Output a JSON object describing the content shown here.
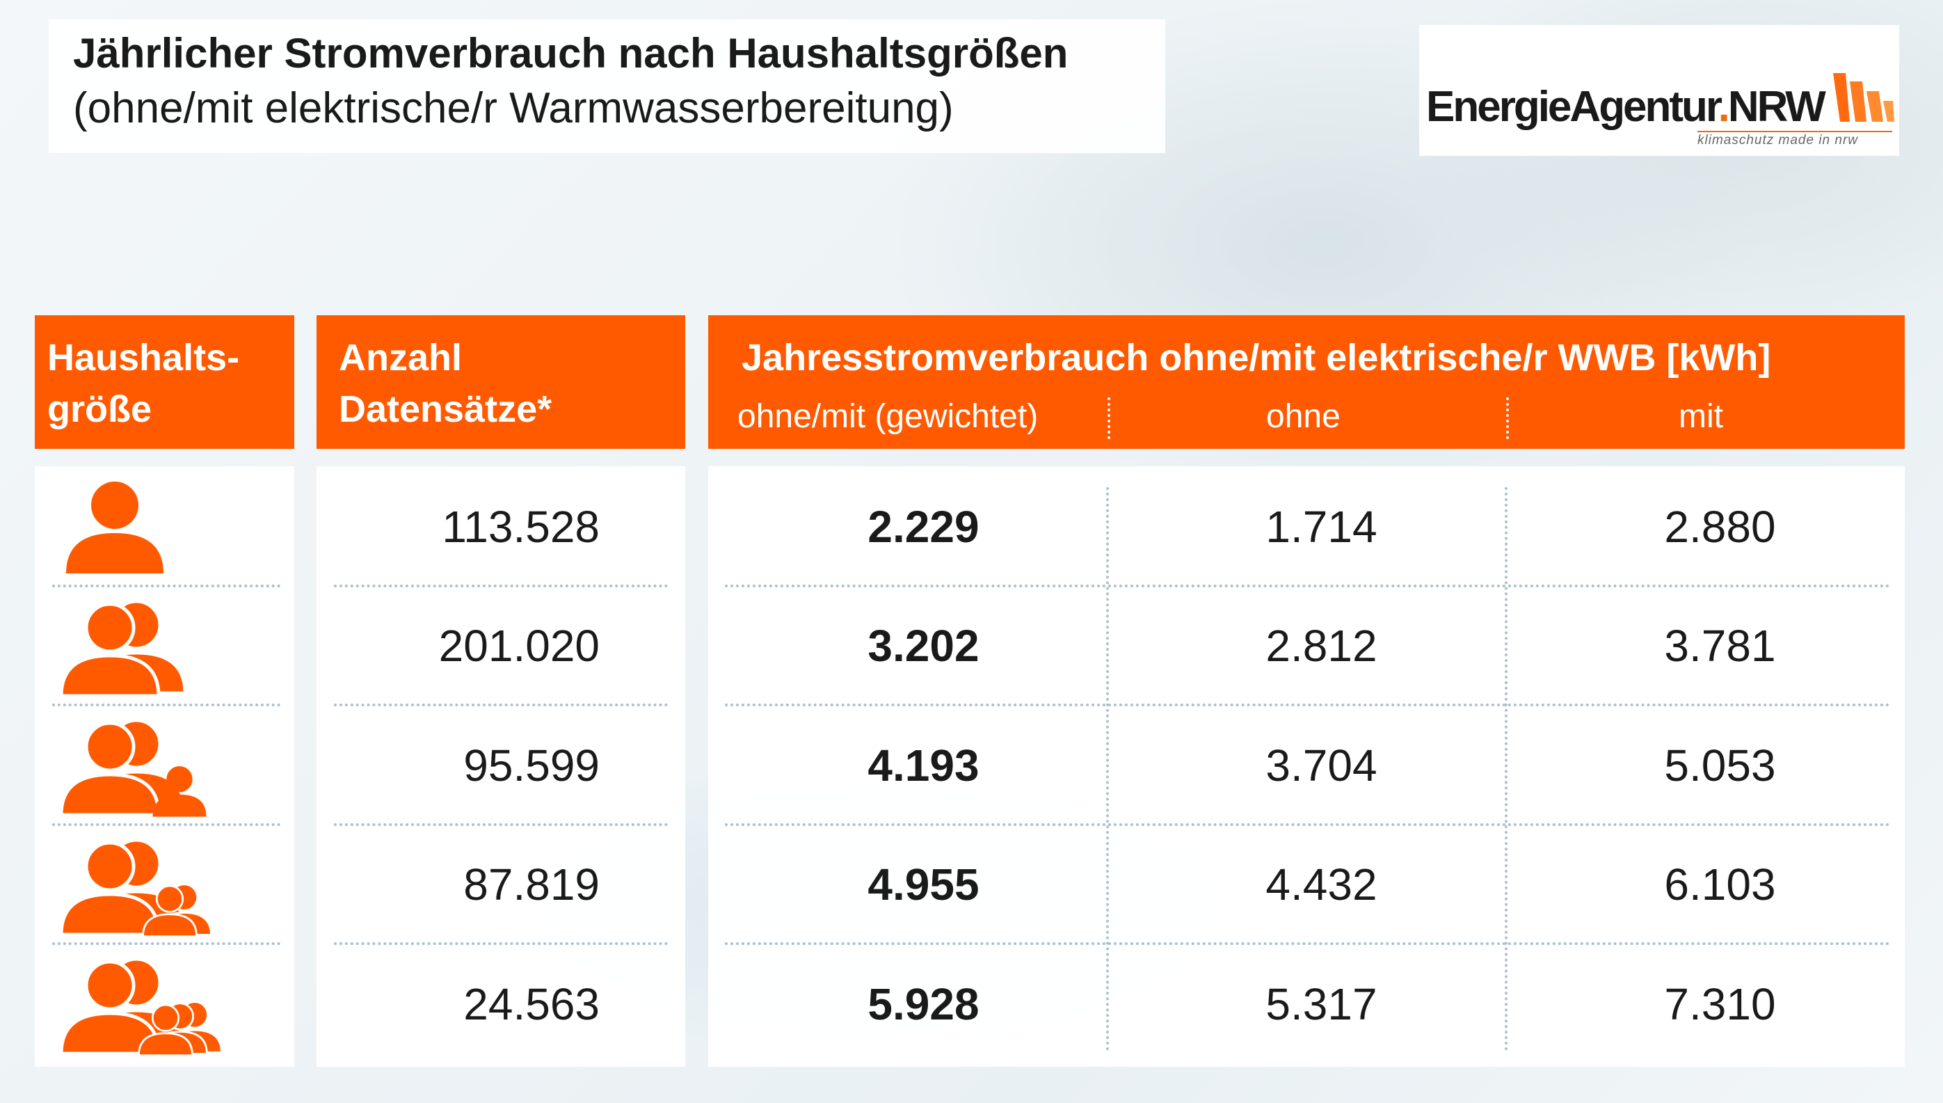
{
  "title": "Jährlicher Stromverbrauch nach Haushaltsgrößen",
  "subtitle": "(ohne/mit elektrische/r Warmwasserbereitung)",
  "logo": {
    "name_part1": "EnergieAgentur",
    "name_dot": ".",
    "name_part2": "NRW",
    "tagline": "klimaschutz made in nrw"
  },
  "colors": {
    "accent": "#ff5a00",
    "separator": "#a9c0cd"
  },
  "chart_data": {
    "type": "table",
    "headers": {
      "household_size": "Haushalts-\ngröße",
      "records": "Anzahl\nDatensätze*",
      "consumption": "Jahresstromverbrauch ohne/mit elektrische/r WWB [kWh]",
      "sub": [
        "ohne/mit (gewichtet)",
        "ohne",
        "mit"
      ]
    },
    "rows": [
      {
        "persons": 1,
        "icon": "person-1-icon",
        "records": "113.528",
        "weighted": "2.229",
        "ohne": "1.714",
        "mit": "2.880"
      },
      {
        "persons": 2,
        "icon": "person-2-icon",
        "records": "201.020",
        "weighted": "3.202",
        "ohne": "2.812",
        "mit": "3.781"
      },
      {
        "persons": 3,
        "icon": "person-3-icon",
        "records": "95.599",
        "weighted": "4.193",
        "ohne": "3.704",
        "mit": "5.053"
      },
      {
        "persons": 4,
        "icon": "person-4-icon",
        "records": "87.819",
        "weighted": "4.955",
        "ohne": "4.432",
        "mit": "6.103"
      },
      {
        "persons": 5,
        "icon": "person-5-icon",
        "records": "24.563",
        "weighted": "5.928",
        "ohne": "5.317",
        "mit": "7.310"
      }
    ]
  }
}
